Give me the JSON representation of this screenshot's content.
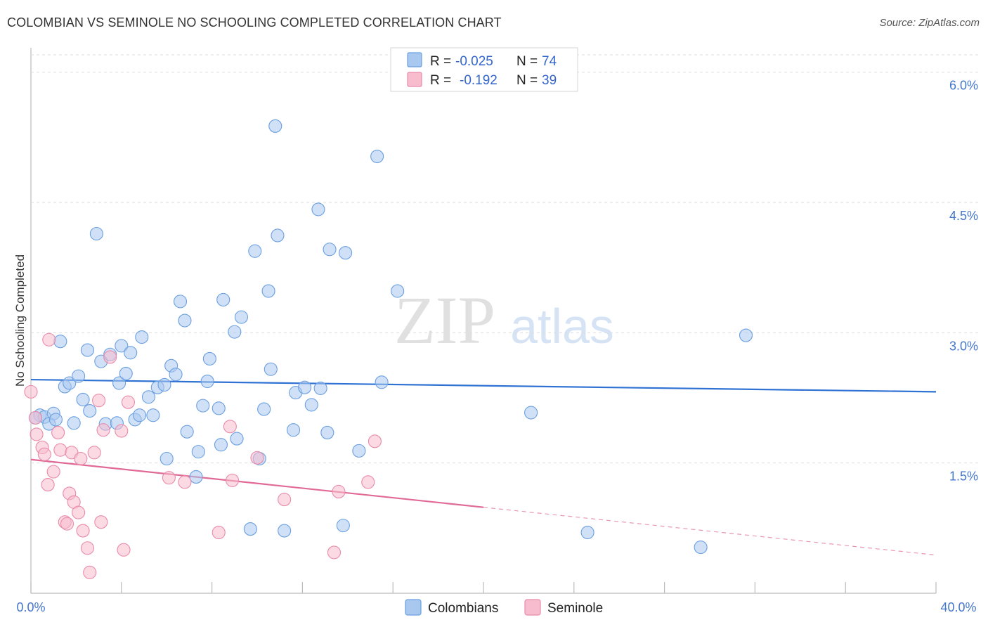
{
  "title": "COLOMBIAN VS SEMINOLE NO SCHOOLING COMPLETED CORRELATION CHART",
  "source": "Source: ZipAtlas.com",
  "watermark": {
    "zip": "ZIP",
    "atlas": "atlas"
  },
  "chart_data": {
    "type": "scatter",
    "xlabel": "",
    "ylabel": "No Schooling Completed",
    "xlim": [
      0,
      40
    ],
    "ylim": [
      0,
      6.2
    ],
    "x_tick_labels": {
      "min": "0.0%",
      "max": "40.0%"
    },
    "y_ticks": [
      {
        "value": 1.5,
        "label": "1.5%"
      },
      {
        "value": 3.0,
        "label": "3.0%"
      },
      {
        "value": 4.5,
        "label": "4.5%"
      },
      {
        "value": 6.0,
        "label": "6.0%"
      }
    ],
    "legend_stats": [
      {
        "r_label": "R =",
        "r_value": "-0.025",
        "n_label": "N =",
        "n_value": "74",
        "color": "#a9c8f0",
        "stroke": "#6a9fe0"
      },
      {
        "r_label": "R =",
        "r_value": "-0.192",
        "n_label": "N =",
        "n_value": "39",
        "color": "#f7bccd",
        "stroke": "#ea8aaa"
      }
    ],
    "series": [
      {
        "name": "Colombians",
        "color": "#a9c8f0",
        "stroke": "#6a9fe0",
        "trend": {
          "x0": 0,
          "y0": 2.46,
          "x1": 40,
          "y1": 2.32,
          "color": "#2f72d4"
        },
        "points": [
          [
            0.4,
            2.05
          ],
          [
            0.6,
            2.03
          ],
          [
            0.8,
            1.95
          ],
          [
            1.0,
            2.07
          ],
          [
            1.1,
            2.0
          ],
          [
            1.3,
            2.9
          ],
          [
            1.5,
            2.38
          ],
          [
            1.7,
            2.42
          ],
          [
            1.9,
            1.96
          ],
          [
            2.1,
            2.5
          ],
          [
            2.3,
            2.23
          ],
          [
            2.5,
            2.8
          ],
          [
            2.6,
            2.1
          ],
          [
            2.9,
            4.14
          ],
          [
            3.1,
            2.67
          ],
          [
            3.3,
            1.95
          ],
          [
            3.5,
            2.75
          ],
          [
            3.8,
            1.96
          ],
          [
            3.9,
            2.42
          ],
          [
            4.0,
            2.85
          ],
          [
            4.2,
            2.53
          ],
          [
            4.4,
            2.77
          ],
          [
            4.6,
            2.0
          ],
          [
            4.8,
            2.05
          ],
          [
            4.9,
            2.95
          ],
          [
            5.2,
            2.26
          ],
          [
            5.4,
            2.05
          ],
          [
            5.6,
            2.37
          ],
          [
            5.9,
            2.4
          ],
          [
            6.0,
            1.55
          ],
          [
            6.2,
            2.62
          ],
          [
            6.4,
            2.52
          ],
          [
            6.6,
            3.36
          ],
          [
            6.8,
            3.14
          ],
          [
            6.9,
            1.86
          ],
          [
            7.3,
            1.34
          ],
          [
            7.4,
            1.63
          ],
          [
            7.6,
            2.16
          ],
          [
            7.8,
            2.44
          ],
          [
            7.9,
            2.7
          ],
          [
            8.3,
            2.13
          ],
          [
            8.4,
            1.71
          ],
          [
            8.5,
            3.38
          ],
          [
            9.0,
            3.01
          ],
          [
            9.1,
            1.78
          ],
          [
            9.3,
            3.18
          ],
          [
            9.7,
            0.74
          ],
          [
            9.9,
            3.94
          ],
          [
            10.1,
            1.55
          ],
          [
            10.3,
            2.12
          ],
          [
            10.5,
            3.48
          ],
          [
            10.6,
            2.58
          ],
          [
            10.8,
            5.38
          ],
          [
            10.9,
            4.12
          ],
          [
            11.2,
            0.72
          ],
          [
            11.6,
            1.88
          ],
          [
            11.7,
            2.31
          ],
          [
            12.1,
            2.37
          ],
          [
            12.4,
            2.17
          ],
          [
            12.7,
            4.42
          ],
          [
            12.8,
            2.36
          ],
          [
            13.1,
            1.85
          ],
          [
            13.2,
            3.96
          ],
          [
            13.8,
            0.78
          ],
          [
            13.9,
            3.92
          ],
          [
            14.5,
            1.64
          ],
          [
            15.3,
            5.03
          ],
          [
            15.5,
            2.43
          ],
          [
            16.2,
            3.48
          ],
          [
            22.1,
            2.08
          ],
          [
            24.6,
            0.7
          ],
          [
            29.6,
            0.53
          ],
          [
            31.6,
            2.97
          ],
          [
            0.2,
            2.02
          ]
        ]
      },
      {
        "name": "Seminole",
        "color": "#f7bccd",
        "stroke": "#ea8aaa",
        "trend": {
          "x0": 0,
          "y0": 1.54,
          "x1": 20,
          "y1": 0.99,
          "dash_x1": 40,
          "dash_y1": 0.44,
          "color": "#e06a95"
        },
        "points": [
          [
            0.0,
            2.32
          ],
          [
            0.2,
            2.02
          ],
          [
            0.25,
            1.83
          ],
          [
            0.5,
            1.68
          ],
          [
            0.6,
            1.6
          ],
          [
            0.75,
            1.25
          ],
          [
            0.8,
            2.92
          ],
          [
            1.0,
            1.4
          ],
          [
            1.2,
            1.85
          ],
          [
            1.3,
            1.65
          ],
          [
            1.5,
            0.82
          ],
          [
            1.6,
            0.8
          ],
          [
            1.7,
            1.15
          ],
          [
            1.8,
            1.62
          ],
          [
            1.9,
            1.05
          ],
          [
            2.1,
            0.93
          ],
          [
            2.2,
            1.55
          ],
          [
            2.3,
            0.72
          ],
          [
            2.5,
            0.52
          ],
          [
            2.6,
            0.24
          ],
          [
            2.8,
            1.62
          ],
          [
            3.0,
            2.22
          ],
          [
            3.1,
            0.82
          ],
          [
            3.2,
            1.88
          ],
          [
            3.5,
            2.72
          ],
          [
            4.0,
            1.87
          ],
          [
            4.1,
            0.5
          ],
          [
            4.3,
            2.2
          ],
          [
            6.1,
            1.33
          ],
          [
            6.8,
            1.28
          ],
          [
            8.3,
            0.7
          ],
          [
            8.8,
            1.92
          ],
          [
            8.9,
            1.3
          ],
          [
            10.0,
            1.56
          ],
          [
            11.2,
            1.08
          ],
          [
            13.4,
            0.47
          ],
          [
            13.6,
            1.17
          ],
          [
            14.9,
            1.28
          ],
          [
            15.2,
            1.75
          ]
        ]
      }
    ]
  }
}
